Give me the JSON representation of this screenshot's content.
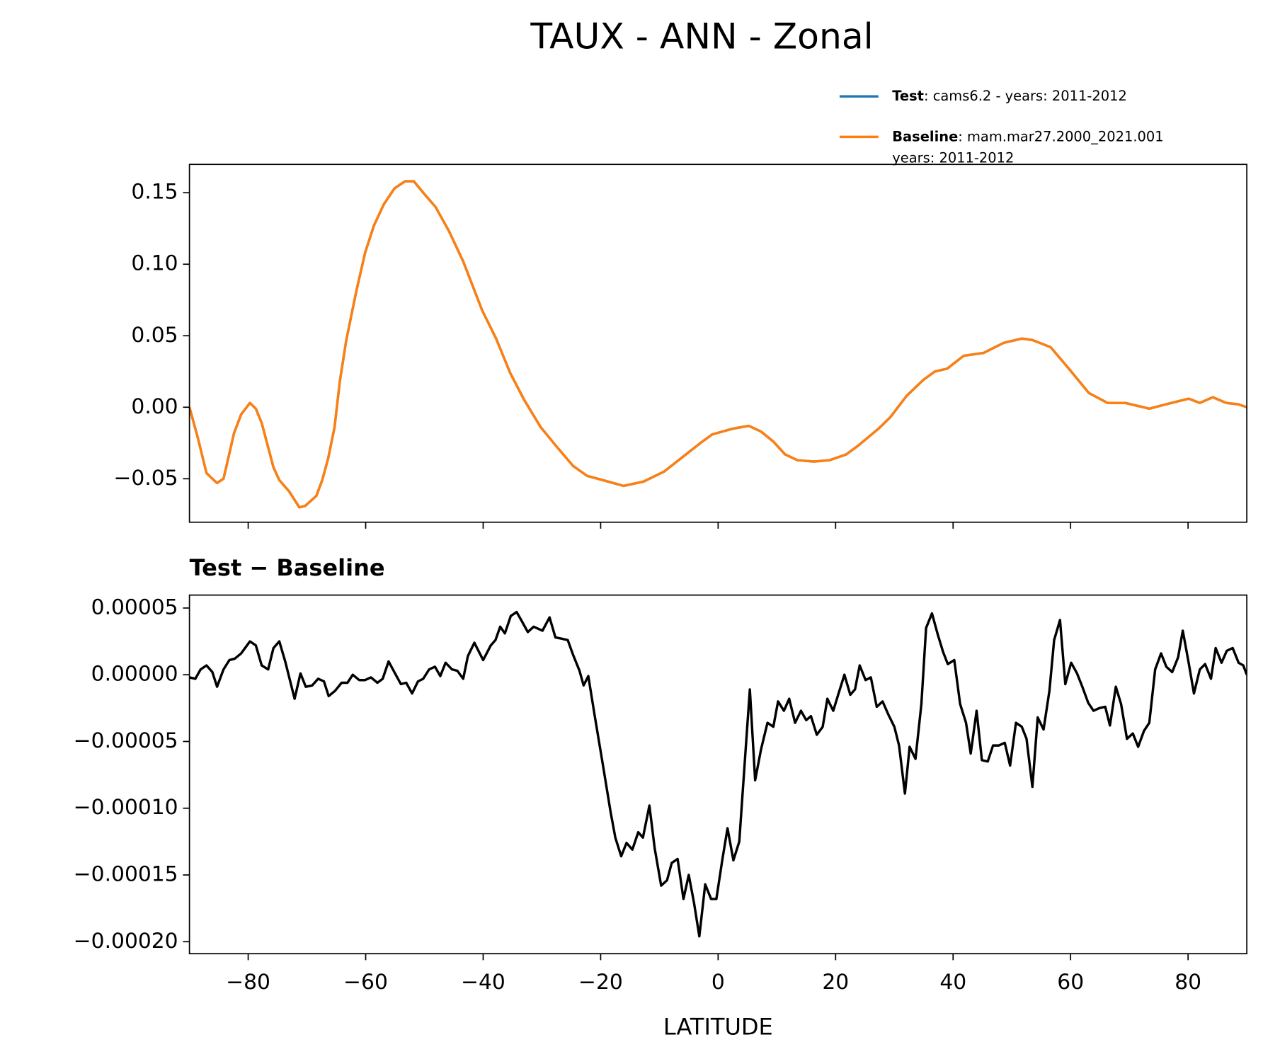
{
  "chart_data": [
    {
      "type": "line",
      "title": "TAUX - ANN - Zonal",
      "x": [
        -90,
        -88.6,
        -87.1,
        -86.1,
        -85.3,
        -84.2,
        -82.4,
        -81.2,
        -79.7,
        -78.7,
        -77.7,
        -75.7,
        -74.7,
        -73.0,
        -71.3,
        -70.3,
        -68.4,
        -67.4,
        -66.4,
        -65.3,
        -64.4,
        -63.3,
        -61.6,
        -60.1,
        -58.6,
        -56.9,
        -55.1,
        -53.3,
        -51.8,
        -50.2,
        -48.1,
        -45.8,
        -43.4,
        -40.2,
        -37.8,
        -35.4,
        -33.0,
        -30.2,
        -27.6,
        -24.7,
        -22.3,
        -19.6,
        -16.1,
        -12.7,
        -9.2,
        -5.8,
        -3.0,
        -1.0,
        2.5,
        5.2,
        7.3,
        9.4,
        11.4,
        13.5,
        16.3,
        19.0,
        21.8,
        23.8,
        27.3,
        29.3,
        32.1,
        34.9,
        36.9,
        39.0,
        41.8,
        45.2,
        48.6,
        51.7,
        53.5,
        56.6,
        59.7,
        63.1,
        66.3,
        69.3,
        73.4,
        76.2,
        80.1,
        82.0,
        84.2,
        86.5,
        88.6,
        90
      ],
      "series": [
        {
          "name": "Test",
          "label": ": cams6.2 - years: 2011-2012",
          "color": "#1f77b4",
          "values": [
            0.0,
            -0.021,
            -0.046,
            -0.05,
            -0.053,
            -0.05,
            -0.018,
            -0.005,
            0.003,
            -0.001,
            -0.011,
            -0.042,
            -0.051,
            -0.059,
            -0.07,
            -0.069,
            -0.062,
            -0.051,
            -0.036,
            -0.014,
            0.018,
            0.047,
            0.081,
            0.108,
            0.127,
            0.142,
            0.153,
            0.158,
            0.158,
            0.15,
            0.14,
            0.123,
            0.102,
            0.068,
            0.048,
            0.024,
            0.005,
            -0.014,
            -0.027,
            -0.041,
            -0.048,
            -0.051,
            -0.055,
            -0.052,
            -0.045,
            -0.034,
            -0.025,
            -0.019,
            -0.015,
            -0.013,
            -0.017,
            -0.024,
            -0.033,
            -0.037,
            -0.038,
            -0.037,
            -0.033,
            -0.027,
            -0.015,
            -0.007,
            0.008,
            0.019,
            0.025,
            0.027,
            0.036,
            0.038,
            0.045,
            0.048,
            0.047,
            0.042,
            0.027,
            0.01,
            0.003,
            0.003,
            -0.001,
            0.002,
            0.006,
            0.003,
            0.007,
            0.003,
            0.002,
            0.0
          ]
        },
        {
          "name": "Baseline",
          "label": ": mam.mar27.2000_2021.001",
          "label_line2": "years: 2011-2012",
          "color": "#ff7f0e",
          "values": [
            0.0,
            -0.021,
            -0.046,
            -0.05,
            -0.053,
            -0.05,
            -0.018,
            -0.005,
            0.003,
            -0.001,
            -0.011,
            -0.042,
            -0.051,
            -0.059,
            -0.07,
            -0.069,
            -0.062,
            -0.051,
            -0.036,
            -0.014,
            0.018,
            0.047,
            0.081,
            0.108,
            0.127,
            0.142,
            0.153,
            0.158,
            0.158,
            0.15,
            0.14,
            0.123,
            0.102,
            0.068,
            0.048,
            0.024,
            0.005,
            -0.014,
            -0.027,
            -0.041,
            -0.048,
            -0.051,
            -0.055,
            -0.052,
            -0.045,
            -0.034,
            -0.025,
            -0.019,
            -0.015,
            -0.013,
            -0.017,
            -0.024,
            -0.033,
            -0.037,
            -0.038,
            -0.037,
            -0.033,
            -0.027,
            -0.015,
            -0.007,
            0.008,
            0.019,
            0.025,
            0.027,
            0.036,
            0.038,
            0.045,
            0.048,
            0.047,
            0.042,
            0.027,
            0.01,
            0.003,
            0.003,
            -0.001,
            0.002,
            0.006,
            0.003,
            0.007,
            0.003,
            0.002,
            0.0
          ]
        }
      ],
      "xlim": [
        -90,
        90
      ],
      "xticks": [
        -80,
        -60,
        -40,
        -20,
        0,
        20,
        40,
        60,
        80
      ],
      "ylim": [
        -0.0804,
        0.1698
      ],
      "yticks": [
        {
          "value": -0.05,
          "label": "−0.05"
        },
        {
          "value": 0,
          "label": "0.00"
        },
        0.05,
        {
          "value": 0.1,
          "label": "0.10"
        },
        0.15
      ]
    },
    {
      "type": "line",
      "title": "Test − Baseline",
      "xlabel": "LATITUDE",
      "x": [
        -90,
        -89.0,
        -88.1,
        -87.1,
        -86.1,
        -85.3,
        -84.2,
        -83.2,
        -82.3,
        -81.2,
        -79.7,
        -78.7,
        -77.7,
        -76.6,
        -75.7,
        -74.7,
        -73.7,
        -72.1,
        -71.1,
        -70.2,
        -69.1,
        -68.1,
        -67.1,
        -66.3,
        -65.2,
        -64.1,
        -63.1,
        -62.2,
        -61.1,
        -60.1,
        -59.1,
        -58.0,
        -57.1,
        -56.1,
        -55.0,
        -54.0,
        -53.1,
        -52.1,
        -51.1,
        -50.2,
        -49.2,
        -48.2,
        -47.3,
        -46.4,
        -45.3,
        -44.4,
        -43.4,
        -42.6,
        -41.5,
        -40.0,
        -38.7,
        -37.9,
        -37.1,
        -36.3,
        -35.3,
        -34.3,
        -33.4,
        -32.4,
        -31.4,
        -29.9,
        -28.7,
        -27.7,
        -26.6,
        -25.6,
        -24.7,
        -23.6,
        -22.9,
        -22.1,
        -21.0,
        -19.6,
        -18.3,
        -17.5,
        -16.5,
        -15.6,
        -14.6,
        -13.6,
        -12.8,
        -11.7,
        -10.8,
        -9.7,
        -8.7,
        -7.9,
        -6.9,
        -5.9,
        -5.0,
        -4.1,
        -3.2,
        -2.2,
        -1.2,
        -0.3,
        0.7,
        1.6,
        2.6,
        3.6,
        4.4,
        5.4,
        6.3,
        7.3,
        8.4,
        9.4,
        10.2,
        11.2,
        12.1,
        13.1,
        14.1,
        15.0,
        15.8,
        16.8,
        17.8,
        18.6,
        19.6,
        20.5,
        21.5,
        22.5,
        23.3,
        24.1,
        25.1,
        26.0,
        27.0,
        28.0,
        29.0,
        30.0,
        30.8,
        31.8,
        32.6,
        33.6,
        34.6,
        35.4,
        36.4,
        37.4,
        38.3,
        39.1,
        40.2,
        41.2,
        42.2,
        43.0,
        44.0,
        44.9,
        45.9,
        46.8,
        47.8,
        48.8,
        49.7,
        50.7,
        51.7,
        52.5,
        53.5,
        54.4,
        55.4,
        56.4,
        57.2,
        58.2,
        59.1,
        60.1,
        61.1,
        62.0,
        63.0,
        63.9,
        64.9,
        65.9,
        66.7,
        67.7,
        68.6,
        69.6,
        70.6,
        71.5,
        72.5,
        73.4,
        74.4,
        75.4,
        76.3,
        77.3,
        78.3,
        79.1,
        80.1,
        81.0,
        82.0,
        82.9,
        83.9,
        84.7,
        85.7,
        86.6,
        87.6,
        88.6,
        89.4,
        90
      ],
      "series": [
        {
          "color": "#000000",
          "values": [
            -2e-06,
            -3e-06,
            4e-06,
            7e-06,
            2e-06,
            -9e-06,
            4e-06,
            1.1e-05,
            1.2e-05,
            1.6e-05,
            2.5e-05,
            2.2e-05,
            7e-06,
            4e-06,
            2e-05,
            2.5e-05,
            1e-05,
            -1.8e-05,
            1e-06,
            -9e-06,
            -8e-06,
            -3e-06,
            -5e-06,
            -1.6e-05,
            -1.2e-05,
            -6e-06,
            -6e-06,
            0.0,
            -4e-06,
            -4e-06,
            -2e-06,
            -6e-06,
            -3e-06,
            1e-05,
            1e-06,
            -7e-06,
            -6e-06,
            -1.4e-05,
            -5e-06,
            -3e-06,
            4e-06,
            6e-06,
            -1e-06,
            9e-06,
            4e-06,
            3e-06,
            -3e-06,
            1.4e-05,
            2.4e-05,
            1.1e-05,
            2.2e-05,
            2.6e-05,
            3.6e-05,
            3.1e-05,
            4.4e-05,
            4.7e-05,
            4e-05,
            3.2e-05,
            3.6e-05,
            3.3e-05,
            4.3e-05,
            2.8e-05,
            2.7e-05,
            2.6e-05,
            1.5e-05,
            3e-06,
            -8e-06,
            -1e-06,
            -3.1e-05,
            -6.8e-05,
            -0.000103,
            -0.000122,
            -0.000136,
            -0.000126,
            -0.000131,
            -0.000118,
            -0.000122,
            -9.8e-05,
            -0.00013,
            -0.000158,
            -0.000154,
            -0.000141,
            -0.000138,
            -0.000168,
            -0.00015,
            -0.000171,
            -0.000196,
            -0.000157,
            -0.000168,
            -0.000168,
            -0.000139,
            -0.000115,
            -0.000139,
            -0.000125,
            -7.4e-05,
            -1.1e-05,
            -7.9e-05,
            -5.6e-05,
            -3.6e-05,
            -3.9e-05,
            -2e-05,
            -2.7e-05,
            -1.8e-05,
            -3.6e-05,
            -2.7e-05,
            -3.4e-05,
            -3.1e-05,
            -4.5e-05,
            -3.9e-05,
            -1.8e-05,
            -2.7e-05,
            -1.4e-05,
            0.0,
            -1.5e-05,
            -1.1e-05,
            7e-06,
            -4e-06,
            -2e-06,
            -2.4e-05,
            -2e-05,
            -3e-05,
            -3.9e-05,
            -5.3e-05,
            -8.9e-05,
            -5.4e-05,
            -6.3e-05,
            -2.2e-05,
            3.5e-05,
            4.6e-05,
            3e-05,
            1.7e-05,
            8e-06,
            1.1e-05,
            -2.2e-05,
            -3.6e-05,
            -5.9e-05,
            -2.7e-05,
            -6.4e-05,
            -6.5e-05,
            -5.3e-05,
            -5.3e-05,
            -5.1e-05,
            -6.8e-05,
            -3.6e-05,
            -3.9e-05,
            -4.8e-05,
            -8.4e-05,
            -3.2e-05,
            -4.1e-05,
            -1.2e-05,
            2.6e-05,
            4.1e-05,
            -7e-06,
            9e-06,
            1e-06,
            -9e-06,
            -2.1e-05,
            -2.7e-05,
            -2.5e-05,
            -2.4e-05,
            -3.8e-05,
            -9e-06,
            -2.2e-05,
            -4.8e-05,
            -4.4e-05,
            -5.4e-05,
            -4.2e-05,
            -3.6e-05,
            4e-06,
            1.6e-05,
            6e-06,
            2e-06,
            1.3e-05,
            3.3e-05,
            9e-06,
            -1.4e-05,
            4e-06,
            8e-06,
            -3e-06,
            2e-05,
            9e-06,
            1.8e-05,
            2e-05,
            9e-06,
            7e-06,
            0.0
          ]
        }
      ],
      "xlim": [
        -90,
        90
      ],
      "xticks": [
        {
          "value": -80,
          "label": "−80"
        },
        {
          "value": -60,
          "label": "−60"
        },
        {
          "value": -40,
          "label": "−40"
        },
        {
          "value": -20,
          "label": "−20"
        },
        0,
        20,
        40,
        60,
        80
      ],
      "ylim": [
        -0.000209,
        5.97e-05
      ],
      "yticks": [
        {
          "value": -0.0002,
          "label": "−0.00020"
        },
        {
          "value": -0.00015,
          "label": "−0.00015"
        },
        {
          "value": -0.0001,
          "label": "−0.00010"
        },
        {
          "value": -5e-05,
          "label": "−0.00005"
        },
        {
          "value": 0,
          "label": "0.00000"
        },
        5e-05
      ]
    }
  ]
}
